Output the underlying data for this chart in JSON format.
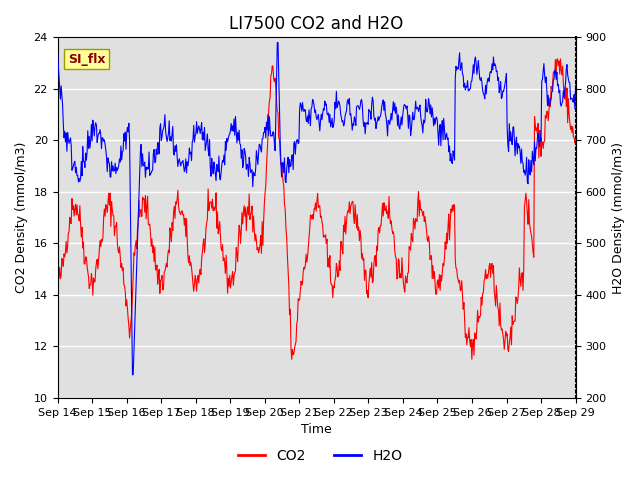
{
  "title": "LI7500 CO2 and H2O",
  "xlabel": "Time",
  "ylabel_left": "CO2 Density (mmol/m3)",
  "ylabel_right": "H2O Density (mmol/m3)",
  "co2_ylim": [
    10,
    24
  ],
  "h2o_ylim": [
    200,
    900
  ],
  "co2_yticks": [
    10,
    12,
    14,
    16,
    18,
    20,
    22,
    24
  ],
  "h2o_yticks": [
    200,
    300,
    400,
    500,
    600,
    700,
    800,
    900
  ],
  "x_tick_labels": [
    "Sep 14",
    "Sep 15",
    "Sep 16",
    "Sep 17",
    "Sep 18",
    "Sep 19",
    "Sep 20",
    "Sep 21",
    "Sep 22",
    "Sep 23",
    "Sep 24",
    "Sep 25",
    "Sep 26",
    "Sep 27",
    "Sep 28",
    "Sep 29"
  ],
  "co2_color": "#FF0000",
  "h2o_color": "#0000FF",
  "background_color": "#FFFFFF",
  "plot_bg_color": "#E0E0E0",
  "grid_color": "#FFFFFF",
  "legend_box_color": "#FFFF99",
  "legend_box_text": "SI_flx",
  "title_fontsize": 12,
  "label_fontsize": 9,
  "tick_fontsize": 8
}
